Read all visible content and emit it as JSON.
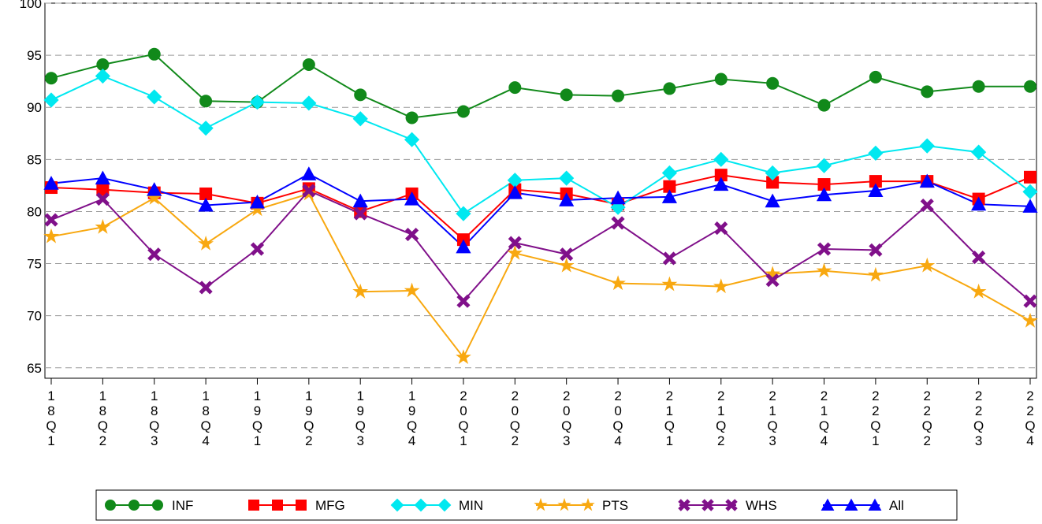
{
  "chart_data": {
    "type": "line",
    "categories": [
      "18Q1",
      "18Q2",
      "18Q3",
      "18Q4",
      "19Q1",
      "19Q2",
      "19Q3",
      "19Q4",
      "20Q1",
      "20Q2",
      "20Q3",
      "20Q4",
      "21Q1",
      "21Q2",
      "21Q3",
      "21Q4",
      "22Q1",
      "22Q2",
      "22Q3",
      "22Q4"
    ],
    "ylim": [
      64,
      100
    ],
    "yticks": [
      65,
      70,
      75,
      80,
      85,
      90,
      95,
      100
    ],
    "grid": true,
    "legend": "bottom",
    "series": [
      {
        "name": "INF",
        "color": "#11891a",
        "marker": "circle",
        "values": [
          92.8,
          94.1,
          95.1,
          90.6,
          90.5,
          94.1,
          91.2,
          89.0,
          89.6,
          91.9,
          91.2,
          91.1,
          91.8,
          92.7,
          92.3,
          90.2,
          92.9,
          91.5,
          92.0,
          92.0
        ]
      },
      {
        "name": "MFG",
        "color": "#ff0000",
        "marker": "square",
        "values": [
          82.3,
          82.1,
          81.8,
          81.7,
          80.8,
          82.2,
          80.0,
          81.7,
          77.3,
          82.1,
          81.7,
          80.7,
          82.4,
          83.5,
          82.8,
          82.6,
          82.9,
          82.9,
          81.2,
          83.3
        ]
      },
      {
        "name": "MIN",
        "color": "#00e8f0",
        "marker": "diamond",
        "values": [
          90.7,
          93.0,
          91.0,
          88.0,
          90.5,
          90.4,
          88.9,
          86.9,
          79.8,
          83.0,
          83.2,
          80.4,
          83.7,
          85.0,
          83.7,
          84.4,
          85.6,
          86.3,
          85.7,
          81.9
        ]
      },
      {
        "name": "PTS",
        "color": "#f8a810",
        "marker": "star",
        "values": [
          77.6,
          78.5,
          81.3,
          76.9,
          80.2,
          81.7,
          72.3,
          72.4,
          66.0,
          76.0,
          74.8,
          73.1,
          73.0,
          72.8,
          74.0,
          74.3,
          73.9,
          74.8,
          72.3,
          69.5
        ]
      },
      {
        "name": "WHS",
        "color": "#80108a",
        "marker": "cross",
        "values": [
          79.2,
          81.2,
          75.9,
          72.7,
          76.4,
          82.0,
          79.8,
          77.8,
          71.4,
          77.0,
          75.9,
          78.9,
          75.5,
          78.4,
          73.4,
          76.4,
          76.3,
          80.6,
          75.6,
          71.4
        ]
      },
      {
        "name": "All",
        "color": "#0000ff",
        "marker": "triangle",
        "values": [
          82.7,
          83.2,
          82.1,
          80.6,
          80.9,
          83.6,
          81.0,
          81.2,
          76.6,
          81.8,
          81.1,
          81.3,
          81.4,
          82.6,
          81.0,
          81.6,
          82.0,
          82.9,
          80.7,
          80.5
        ]
      }
    ]
  }
}
